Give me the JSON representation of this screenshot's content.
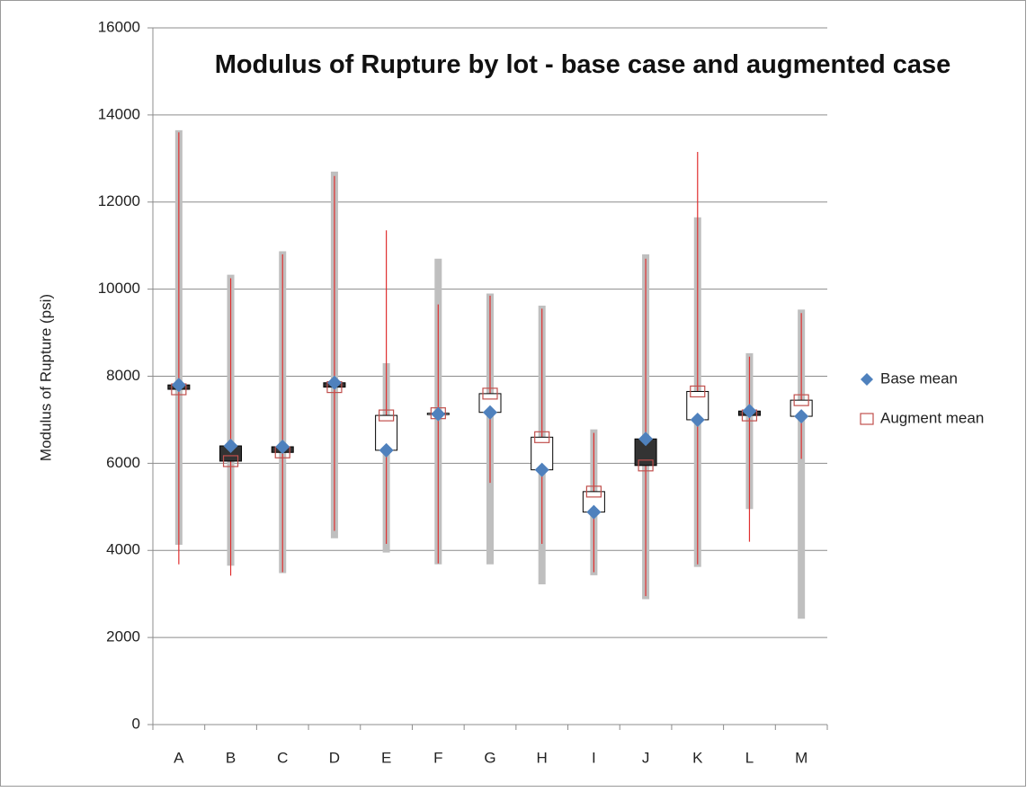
{
  "chart_data": {
    "type": "stock",
    "title": "Modulus of Rupture by lot - base case and augmented case",
    "y_label": "Modulus of Rupture (psi)",
    "categories": [
      "A",
      "B",
      "C",
      "D",
      "E",
      "F",
      "G",
      "H",
      "I",
      "J",
      "K",
      "L",
      "M"
    ],
    "ylim": [
      0,
      16000
    ],
    "yticks": [
      0,
      2000,
      4000,
      6000,
      8000,
      10000,
      12000,
      14000,
      16000
    ],
    "grid": true,
    "series": [
      {
        "name": "Base mean",
        "color": "#4f81bd",
        "values": [
          7800,
          6400,
          6380,
          7850,
          6300,
          7130,
          7170,
          5850,
          4880,
          6560,
          7000,
          7200,
          7080
        ]
      },
      {
        "name": "Augment mean",
        "color": "#c0504d",
        "values": [
          7700,
          6050,
          6250,
          7750,
          7100,
          7150,
          7600,
          6600,
          5350,
          5950,
          7650,
          7100,
          7450
        ]
      }
    ],
    "base_range": {
      "color": "#bfbfbf",
      "high": [
        13650,
        10330,
        10870,
        12700,
        8300,
        10700,
        9900,
        9620,
        6780,
        10800,
        11650,
        8530,
        9530
      ],
      "low": [
        4130,
        3650,
        3480,
        4280,
        3950,
        3680,
        3680,
        3220,
        3430,
        2880,
        3620,
        4950,
        2430
      ]
    },
    "augment_range": {
      "color": "#e03030",
      "high": [
        13600,
        10250,
        10800,
        12600,
        11350,
        9650,
        9850,
        9550,
        6700,
        10700,
        13150,
        8450,
        9450
      ],
      "low": [
        3680,
        3420,
        3500,
        4450,
        4150,
        3700,
        5550,
        4150,
        3500,
        2950,
        3680,
        4200,
        6100
      ]
    },
    "up_color": "#ffffff",
    "down_color": "#333333"
  }
}
